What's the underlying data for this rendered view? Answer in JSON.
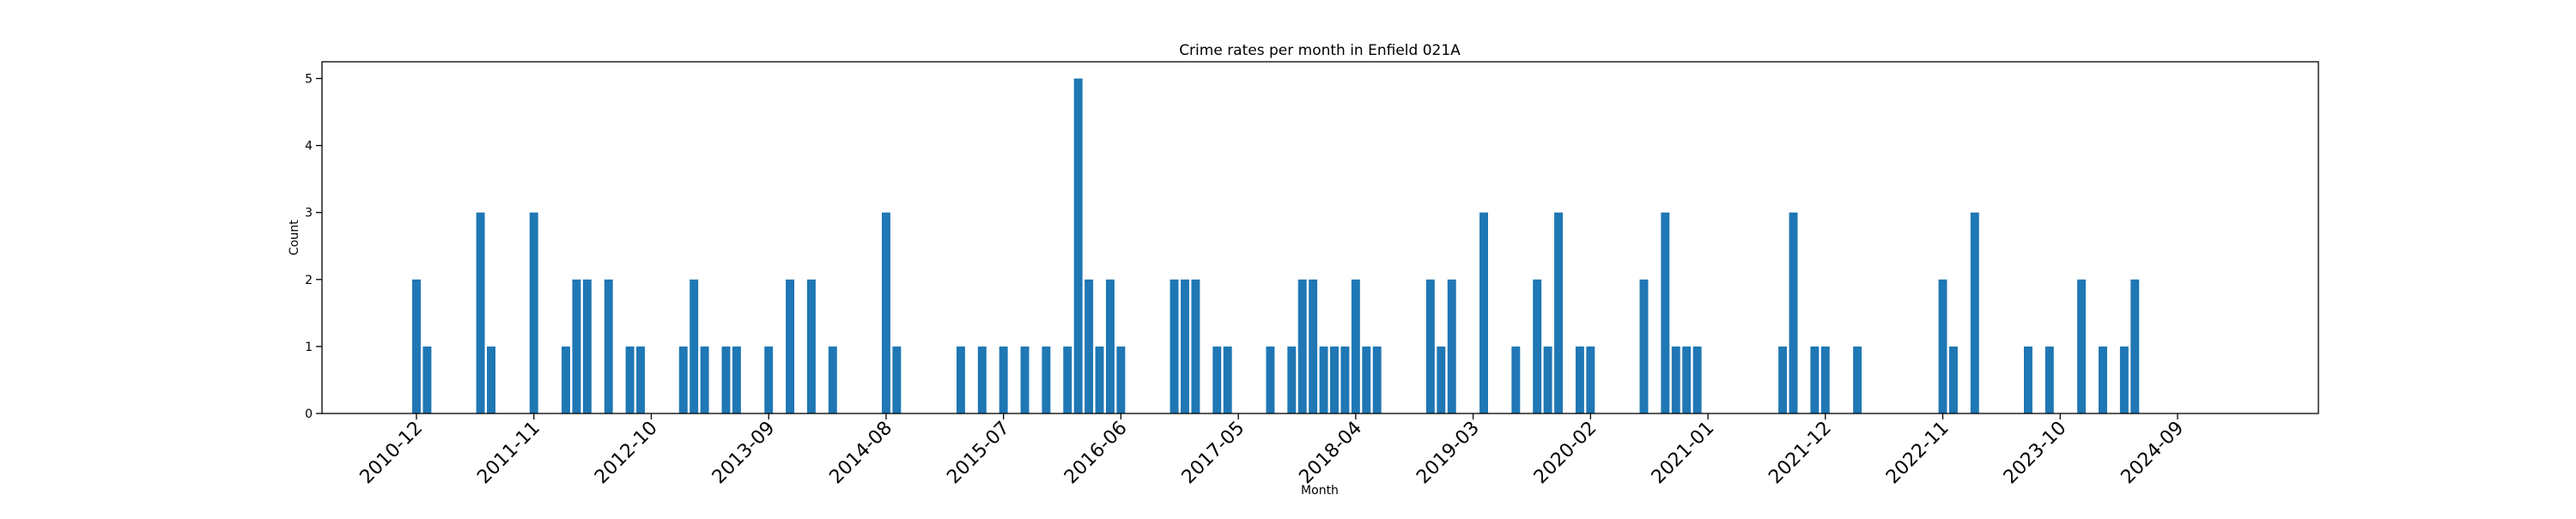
{
  "chart_data": {
    "type": "bar",
    "title": "Crime rates per month in Enfield 021A",
    "xlabel": "Month",
    "ylabel": "Count",
    "ylim": [
      0,
      5.25
    ],
    "yticks": [
      0,
      1,
      2,
      3,
      4,
      5
    ],
    "xtick_labels": [
      "2010-12",
      "2011-11",
      "2012-10",
      "2013-09",
      "2014-08",
      "2015-07",
      "2016-06",
      "2017-05",
      "2018-04",
      "2019-03",
      "2020-02",
      "2021-01",
      "2021-12",
      "2022-11",
      "2023-10",
      "2024-09"
    ],
    "grid": false,
    "bar_color": "#1f77b4",
    "categories": [
      "2010-12",
      "2011-01",
      "2011-06",
      "2011-07",
      "2011-11",
      "2012-02",
      "2012-03",
      "2012-04",
      "2012-06",
      "2012-08",
      "2012-09",
      "2013-01",
      "2013-02",
      "2013-03",
      "2013-05",
      "2013-06",
      "2013-09",
      "2013-11",
      "2014-01",
      "2014-03",
      "2014-08",
      "2014-09",
      "2015-03",
      "2015-05",
      "2015-07",
      "2015-09",
      "2015-11",
      "2016-01",
      "2016-02",
      "2016-03",
      "2016-04",
      "2016-05",
      "2016-06",
      "2016-11",
      "2016-12",
      "2017-01",
      "2017-03",
      "2017-04",
      "2017-08",
      "2017-10",
      "2017-11",
      "2017-12",
      "2018-01",
      "2018-02",
      "2018-03",
      "2018-04",
      "2018-05",
      "2018-06",
      "2018-11",
      "2018-12",
      "2019-01",
      "2019-04",
      "2019-07",
      "2019-09",
      "2019-10",
      "2019-11",
      "2020-01",
      "2020-02",
      "2020-07",
      "2020-09",
      "2020-10",
      "2020-11",
      "2020-12",
      "2021-08",
      "2021-09",
      "2021-11",
      "2021-12",
      "2022-03",
      "2022-11",
      "2022-12",
      "2023-02",
      "2023-07",
      "2023-09",
      "2023-12",
      "2024-02",
      "2024-04",
      "2024-05"
    ],
    "values": [
      2,
      1,
      3,
      1,
      3,
      1,
      2,
      2,
      2,
      1,
      1,
      1,
      2,
      1,
      1,
      1,
      1,
      2,
      2,
      1,
      3,
      1,
      1,
      1,
      1,
      1,
      1,
      1,
      5,
      2,
      1,
      2,
      1,
      2,
      2,
      2,
      1,
      1,
      1,
      1,
      2,
      2,
      1,
      1,
      1,
      2,
      1,
      1,
      2,
      1,
      2,
      3,
      1,
      2,
      1,
      3,
      1,
      1,
      2,
      3,
      1,
      1,
      1,
      1,
      3,
      1,
      1,
      1,
      2,
      1,
      3,
      1,
      1,
      2,
      1,
      1,
      2
    ]
  }
}
